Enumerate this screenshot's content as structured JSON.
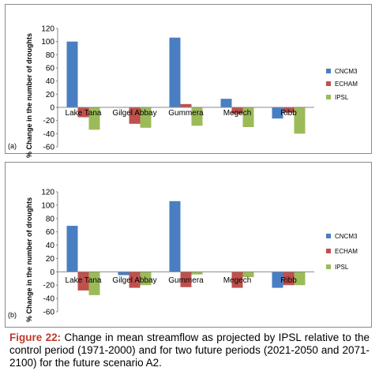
{
  "colors": {
    "CNCM3": "#4a7ec2",
    "ECHAM": "#c0504d",
    "IPSL": "#9bbb59"
  },
  "caption": {
    "label": "Figure 22:",
    "text": " Change in mean streamflow as projected by IPSL relative to the control period (1971-2000) and for two future periods (2021-2050 and 2071-2100) for the future scenario A2."
  },
  "chart_data": [
    {
      "type": "bar",
      "panel_label": "(a)",
      "ylabel": "% Change in the number of droughts",
      "ylim": [
        -60,
        120
      ],
      "yticks": [
        120,
        100,
        80,
        60,
        40,
        20,
        0,
        -20,
        -40,
        -60
      ],
      "categories": [
        "Lake Tana",
        "Gilgel Abbay",
        "Gummera",
        "Megech",
        "Ribb"
      ],
      "series": [
        {
          "name": "CNCM3",
          "values": [
            100,
            0,
            106,
            13,
            -17
          ]
        },
        {
          "name": "ECHAM",
          "values": [
            -15,
            -25,
            5,
            -10,
            -8
          ]
        },
        {
          "name": "IPSL",
          "values": [
            -34,
            -31,
            -28,
            -30,
            -40
          ]
        }
      ],
      "legend": "right"
    },
    {
      "type": "bar",
      "panel_label": "(b)",
      "ylabel": "% Change in the number of droughts",
      "ylim": [
        -60,
        120
      ],
      "yticks": [
        120,
        100,
        80,
        60,
        40,
        20,
        0,
        -20,
        -40,
        -60
      ],
      "categories": [
        "Lake Tana",
        "Gilgel Abbay",
        "Gummera",
        "Megech",
        "Ribb"
      ],
      "series": [
        {
          "name": "CNCM3",
          "values": [
            69,
            -5,
            106,
            0,
            -24
          ]
        },
        {
          "name": "ECHAM",
          "values": [
            -28,
            -24,
            -23,
            -24,
            -20
          ]
        },
        {
          "name": "IPSL",
          "values": [
            -35,
            -20,
            -4,
            -8,
            -20
          ]
        }
      ],
      "legend": "right"
    }
  ]
}
